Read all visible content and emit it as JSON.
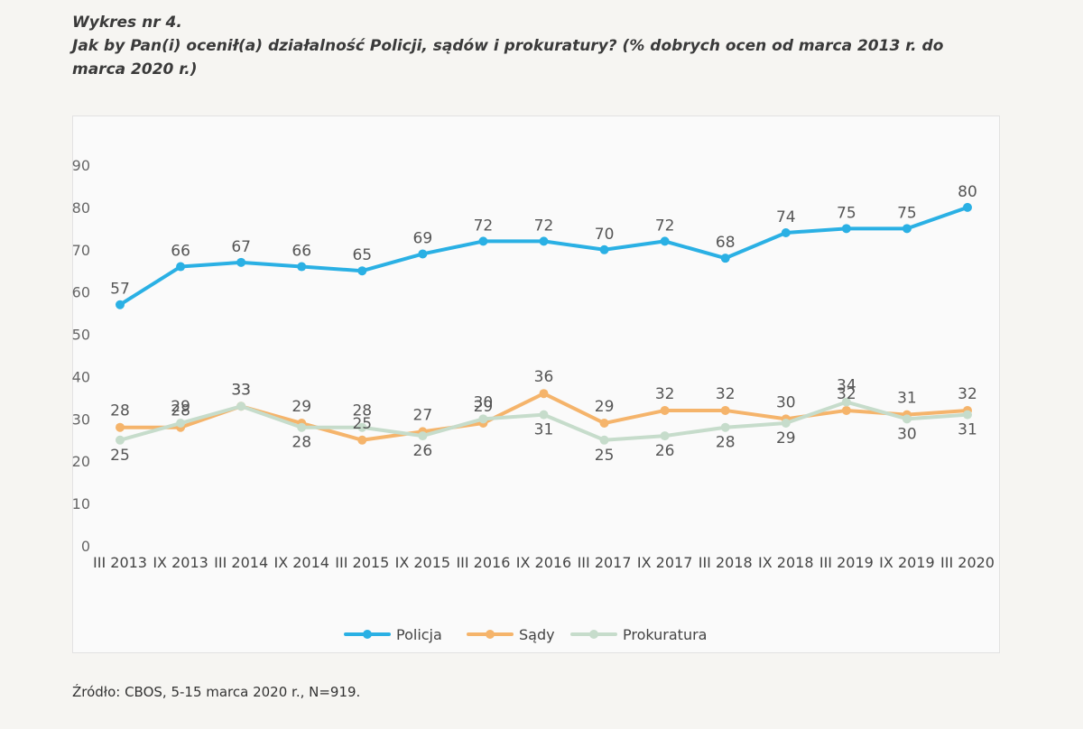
{
  "heading": {
    "label": "Wykres nr 4.",
    "question": "Jak by Pan(i) ocenił(a) działalność Policji, sądów i prokuratury? (% dobrych ocen od marca 2013 r. do marca 2020 r.)",
    "question_line1": "Jak by Pan(i) ocenił(a) działalność Policji, sądów i prokuratury? (% dobrych ocen od marca 2013 r. do",
    "question_line2": "marca 2020 r.)"
  },
  "source": "Źródło: CBOS, 5-15 marca 2020 r., N=919.",
  "chart_data": {
    "type": "line",
    "title": "",
    "xlabel": "",
    "ylabel": "",
    "ylim": [
      0,
      90
    ],
    "yticks": [
      0,
      10,
      20,
      30,
      40,
      50,
      60,
      70,
      80,
      90
    ],
    "grid": false,
    "legend_position": "bottom",
    "categories": [
      "III 2013",
      "IX 2013",
      "III 2014",
      "IX 2014",
      "III 2015",
      "IX 2015",
      "III 2016",
      "IX 2016",
      "III 2017",
      "IX 2017",
      "III 2018",
      "IX 2018",
      "III 2019",
      "IX 2019",
      "III 2020"
    ],
    "series": [
      {
        "name": "Policja",
        "color": "#2ab0e4",
        "values": [
          57,
          66,
          67,
          66,
          65,
          69,
          72,
          72,
          70,
          72,
          68,
          74,
          75,
          75,
          80
        ]
      },
      {
        "name": "Sądy",
        "color": "#f5b46b",
        "values": [
          28,
          28,
          33,
          29,
          25,
          27,
          29,
          36,
          29,
          32,
          32,
          30,
          32,
          31,
          32
        ]
      },
      {
        "name": "Prokuratura",
        "color": "#c6dccb",
        "values": [
          25,
          29,
          33,
          28,
          28,
          26,
          30,
          31,
          25,
          26,
          28,
          29,
          34,
          30,
          31
        ]
      }
    ]
  }
}
